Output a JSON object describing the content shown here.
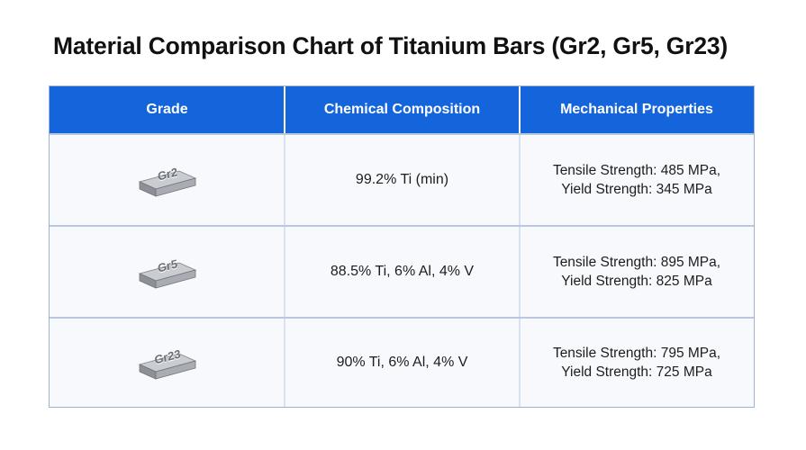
{
  "title": "Material Comparison Chart of Titanium Bars (Gr2, Gr5, Gr23)",
  "columns": [
    "Grade",
    "Chemical Composition",
    "Mechanical Properties"
  ],
  "rows": [
    {
      "grade": "Gr2",
      "composition": "99.2% Ti (min)",
      "tensile": "Tensile Strength: 485 MPa,",
      "yield": "Yield Strength: 345 MPa"
    },
    {
      "grade": "Gr5",
      "composition": "88.5% Ti, 6% Al, 4% V",
      "tensile": "Tensile Strength: 895 MPa,",
      "yield": "Yield Strength: 825 MPa"
    },
    {
      "grade": "Gr23",
      "composition": "90% Ti, 6% Al, 4% V",
      "tensile": "Tensile Strength: 795 MPa,",
      "yield": "Yield Strength: 725 MPa"
    }
  ],
  "colors": {
    "header_bg": "#1465dc",
    "header_text": "#ffffff",
    "bar_top": "#c9ccd1",
    "bar_front": "#8d9197",
    "bar_side": "#a9adb3"
  },
  "icons": [
    "titanium-bar-icon"
  ]
}
